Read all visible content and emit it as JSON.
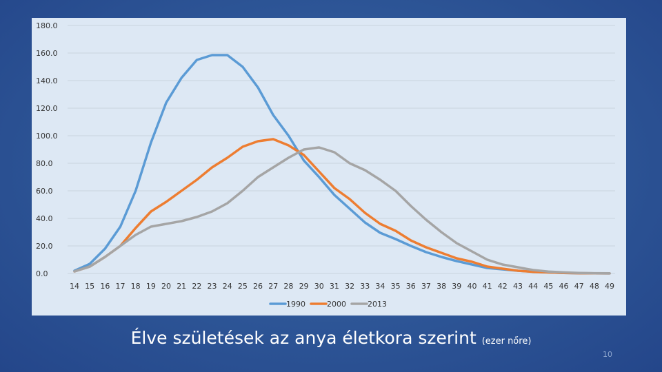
{
  "slide": {
    "title_main": "Élve születések az anya életkora szerint",
    "title_sub": "(ezer nőre)",
    "page_number": "10"
  },
  "chart_data": {
    "type": "line",
    "title": "",
    "xlabel": "",
    "ylabel": "",
    "x": [
      14,
      15,
      16,
      17,
      18,
      19,
      20,
      21,
      22,
      23,
      24,
      25,
      26,
      27,
      28,
      29,
      30,
      31,
      32,
      33,
      34,
      35,
      36,
      37,
      38,
      39,
      40,
      41,
      42,
      43,
      44,
      45,
      46,
      47,
      48,
      49
    ],
    "ylim": [
      0,
      180
    ],
    "yticks": [
      0,
      20,
      40,
      60,
      80,
      100,
      120,
      140,
      160,
      180
    ],
    "ytick_labels": [
      "0.0",
      "20.0",
      "40.0",
      "60.0",
      "80.0",
      "100.0",
      "120.0",
      "140.0",
      "160.0",
      "180.0"
    ],
    "grid": true,
    "legend_position": "bottom",
    "series": [
      {
        "name": "1990",
        "color": "#5b9bd5",
        "values": [
          2,
          7,
          18,
          34,
          60,
          95,
          124,
          142,
          155,
          158.5,
          158.5,
          150,
          135,
          115,
          100,
          82,
          70,
          57,
          47,
          37,
          29.5,
          25,
          20,
          15.5,
          12,
          9,
          6.5,
          4,
          3,
          2,
          1.3,
          0.8,
          0.4,
          0.2,
          0.1,
          0.05
        ]
      },
      {
        "name": "2000",
        "color": "#ed7d31",
        "values": [
          1.5,
          5,
          12,
          20,
          33,
          45,
          52,
          60,
          68,
          77,
          84,
          92,
          96,
          97.5,
          93,
          86,
          74,
          62,
          54,
          44,
          36,
          31,
          24,
          19,
          15,
          11,
          8.5,
          5,
          3.5,
          2,
          1.2,
          0.8,
          0.4,
          0.2,
          0.1,
          0.05
        ]
      },
      {
        "name": "2013",
        "color": "#a5a5a5",
        "values": [
          1.5,
          5,
          12,
          20,
          28,
          34,
          36,
          38,
          41,
          45,
          51,
          60,
          70,
          77,
          84,
          90,
          91.5,
          88,
          80,
          75,
          68,
          60,
          49,
          39,
          30,
          22,
          16,
          10,
          6.5,
          4.5,
          2.5,
          1.4,
          0.8,
          0.4,
          0.2,
          0.1
        ]
      }
    ]
  }
}
